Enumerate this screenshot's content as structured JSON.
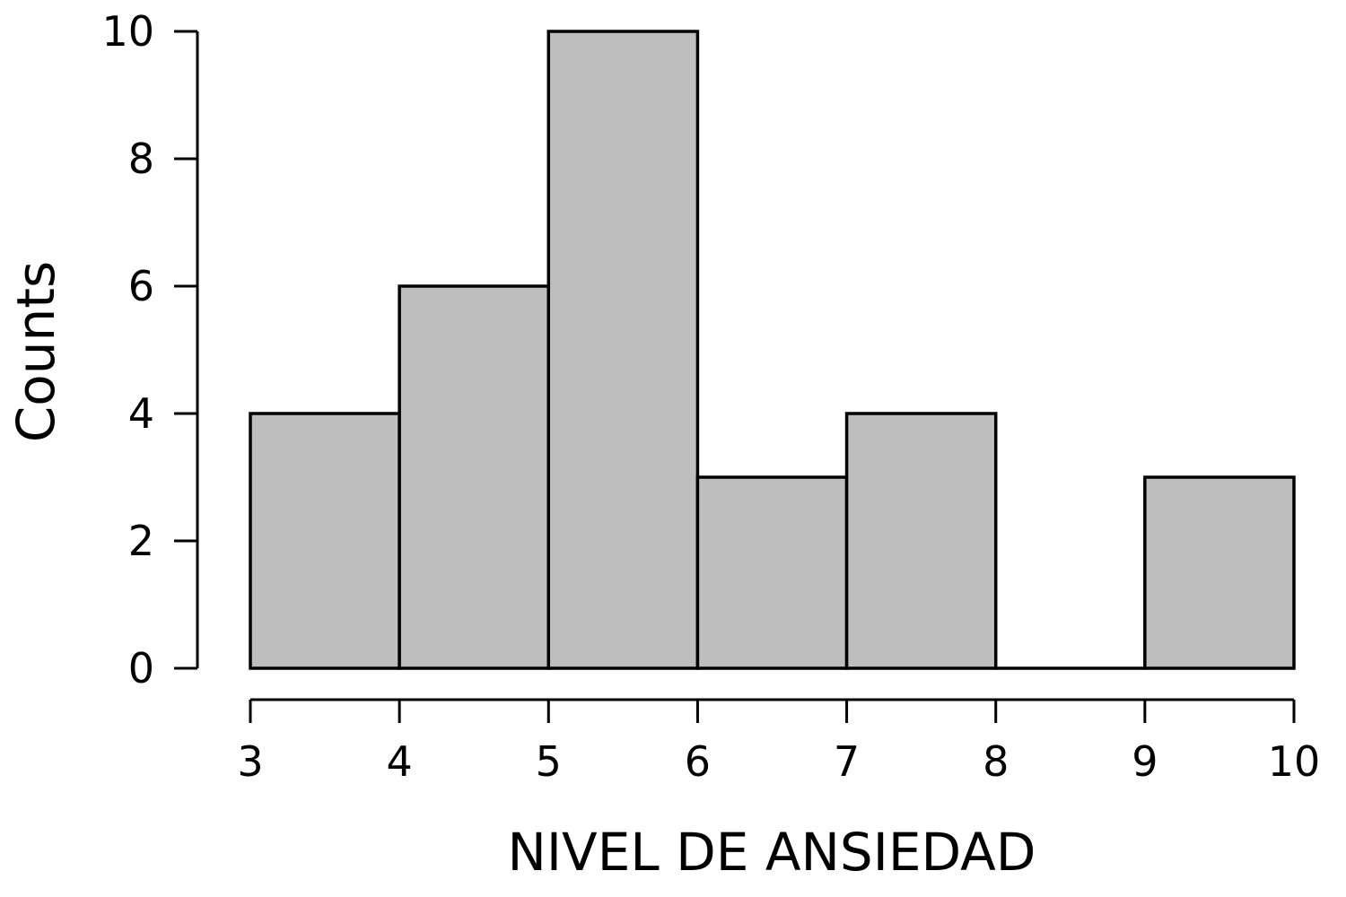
{
  "chart_data": {
    "type": "histogram",
    "xlabel": "NIVEL DE ANSIEDAD",
    "ylabel": "Counts",
    "bins": [
      {
        "start": 3,
        "end": 4,
        "count": 4
      },
      {
        "start": 4,
        "end": 5,
        "count": 6
      },
      {
        "start": 5,
        "end": 6,
        "count": 10
      },
      {
        "start": 6,
        "end": 7,
        "count": 3
      },
      {
        "start": 7,
        "end": 8,
        "count": 4
      },
      {
        "start": 8,
        "end": 9,
        "count": 0
      },
      {
        "start": 9,
        "end": 10,
        "count": 3
      }
    ],
    "xlim": [
      3,
      10
    ],
    "ylim": [
      0,
      10
    ],
    "xticks": [
      3,
      4,
      5,
      6,
      7,
      8,
      9,
      10
    ],
    "yticks": [
      0,
      2,
      4,
      6,
      8,
      10
    ],
    "bar_color": "#bebebe",
    "grid": false,
    "legend": "none"
  }
}
